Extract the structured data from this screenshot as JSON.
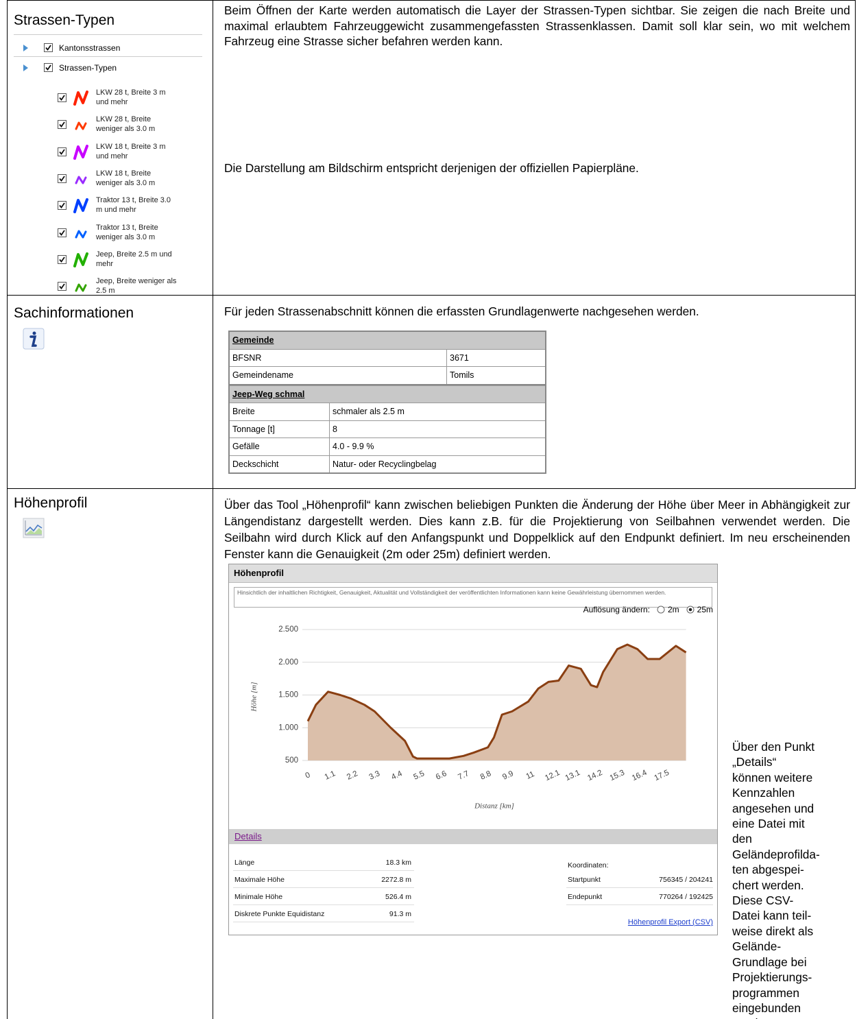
{
  "rows": [
    {
      "title": "Strassen-Typen",
      "groups": [
        "Kantonsstrassen",
        "Strassen-Typen"
      ],
      "items": [
        "LKW 28 t, Breite 3 m und mehr",
        "LKW 28 t, Breite weniger als 3.0 m",
        "LKW 18 t, Breite 3 m und mehr",
        "LKW 18 t, Breite weniger als 3.0 m",
        "Traktor 13 t, Breite 3.0 m und mehr",
        "Traktor 13 t, Breite weniger als 3.0 m",
        "Jeep, Breite 2.5 m und mehr",
        "Jeep, Breite weniger als 2.5 m"
      ],
      "paragraphs": [
        "Beim Öffnen der Karte werden automatisch die Layer der Strassen-Typen sichtbar. Sie zeigen die nach Breite und maximal erlaubtem Fahrzeuggewicht zusammengefassten Strassenklas­sen. Damit soll klar sein, wo mit welchem Fahrzeug eine Strasse sicher befahren werden kann.",
        "Die Darstellung am Bildschirm entspricht derjenigen der offiziellen Papierpläne."
      ]
    },
    {
      "title": "Sachinformationen",
      "paragraphs": [
        "Für jeden Strassenabschnitt können die erfassten Grundlagenwerte nachgesehen werden."
      ],
      "table": [
        {
          "title": "Gemeinde",
          "rows": [
            [
              "BFSNR",
              "3671"
            ],
            [
              "Gemeindename",
              "Tomils"
            ]
          ]
        },
        {
          "title": "Jeep-Weg schmal",
          "rows": [
            [
              "Breite",
              "schmaler als 2.5 m"
            ],
            [
              "Tonnage [t]",
              "8"
            ],
            [
              "Gefälle",
              "4.0 - 9.9 %"
            ],
            [
              "Deckschicht",
              "Natur- oder Recyclingbelag"
            ]
          ]
        }
      ]
    },
    {
      "title": "Höhenprofil",
      "paragraphs": [
        "Über das Tool „Höhenprofil“ kann zwischen beliebigen Punkten die Änderung der Höhe über Meer in Abhängigkeit zur Längendistanz dargestellt werden. Dies kann z.B. für die Projektie­rung von Seilbahnen verwendet werden. Die Seilbahn wird durch Klick auf den Anfangspunkt und Doppelklick auf den Endpunkt definiert. Im neu erscheinenden Fenster kann die Genau­igkeit (2m oder 25m) definiert werden."
      ],
      "side_text": "Über den Punkt „Details“ können weitere Kenn­zahlen ange­se­hen und eine Datei mit den Geländeprofilda­ten abgespei­chert werden. Diese CSV-Datei kann teil­weise direkt als Gelände-Grundlage bei Projektierungs­programmen eingebunden werden."
    }
  ],
  "window": {
    "title": "Höhenprofil",
    "disclaimer": "Hinsichtlich der inhaltlichen Richtigkeit, Genauigkeit, Aktualität und Vollständigkeit der veröffentlichten Informationen kann keine Gewährleistung übernommen werden.",
    "resolution_label": "Auflösung ändern:",
    "options": [
      "2m",
      "25m"
    ],
    "selected_option": 1,
    "details_link": "Details",
    "details_left": [
      [
        "Länge",
        "18.3 km"
      ],
      [
        "Maximale Höhe",
        "2272.8 m"
      ],
      [
        "Minimale Höhe",
        "526.4 m"
      ],
      [
        "Diskrete Punkte Equidistanz",
        "91.3 m"
      ]
    ],
    "coord_title": "Koordinaten:",
    "details_right": [
      [
        "Startpunkt",
        "756345 / 204241"
      ],
      [
        "Endepunkt",
        "770264 / 192425"
      ]
    ],
    "export_link": "Höhenprofil Export (CSV)"
  },
  "chart_data": {
    "type": "area",
    "xlabel": "Distanz [km]",
    "ylabel": "Höhe [m]",
    "x": [
      0,
      0.4,
      1.0,
      1.6,
      2.1,
      2.8,
      3.3,
      4.1,
      4.8,
      5.2,
      5.4,
      7.0,
      7.7,
      8.2,
      8.9,
      9.2,
      9.6,
      10.1,
      10.9,
      11.4,
      11.9,
      12.4,
      12.9,
      13.5,
      14.0,
      14.3,
      14.6,
      15.3,
      15.8,
      16.3,
      16.8,
      17.4,
      18.2,
      18.7
    ],
    "values": [
      1100,
      1350,
      1550,
      1500,
      1450,
      1350,
      1250,
      1000,
      800,
      560,
      530,
      530,
      570,
      620,
      700,
      850,
      1200,
      1250,
      1400,
      1600,
      1700,
      1720,
      1950,
      1900,
      1650,
      1620,
      1850,
      2200,
      2270,
      2200,
      2050,
      2050,
      2250,
      2150
    ],
    "xlim": [
      0,
      18.7
    ],
    "xticks": [
      0,
      1.1,
      2.2,
      3.3,
      4.4,
      5.5,
      6.6,
      7.7,
      8.8,
      9.9,
      11,
      12.1,
      13.1,
      14.2,
      15.3,
      16.4,
      17.5
    ],
    "ylim": [
      500,
      2500
    ],
    "yticks": [
      {
        "value": 500,
        "label": "500"
      },
      {
        "value": 1000,
        "label": "1.000"
      },
      {
        "value": 1500,
        "label": "1.500"
      },
      {
        "value": 2000,
        "label": "2.000"
      },
      {
        "value": 2500,
        "label": "2.500"
      }
    ],
    "grid": true,
    "color": "#dbbfaa",
    "line_color": "#8a3f12"
  }
}
